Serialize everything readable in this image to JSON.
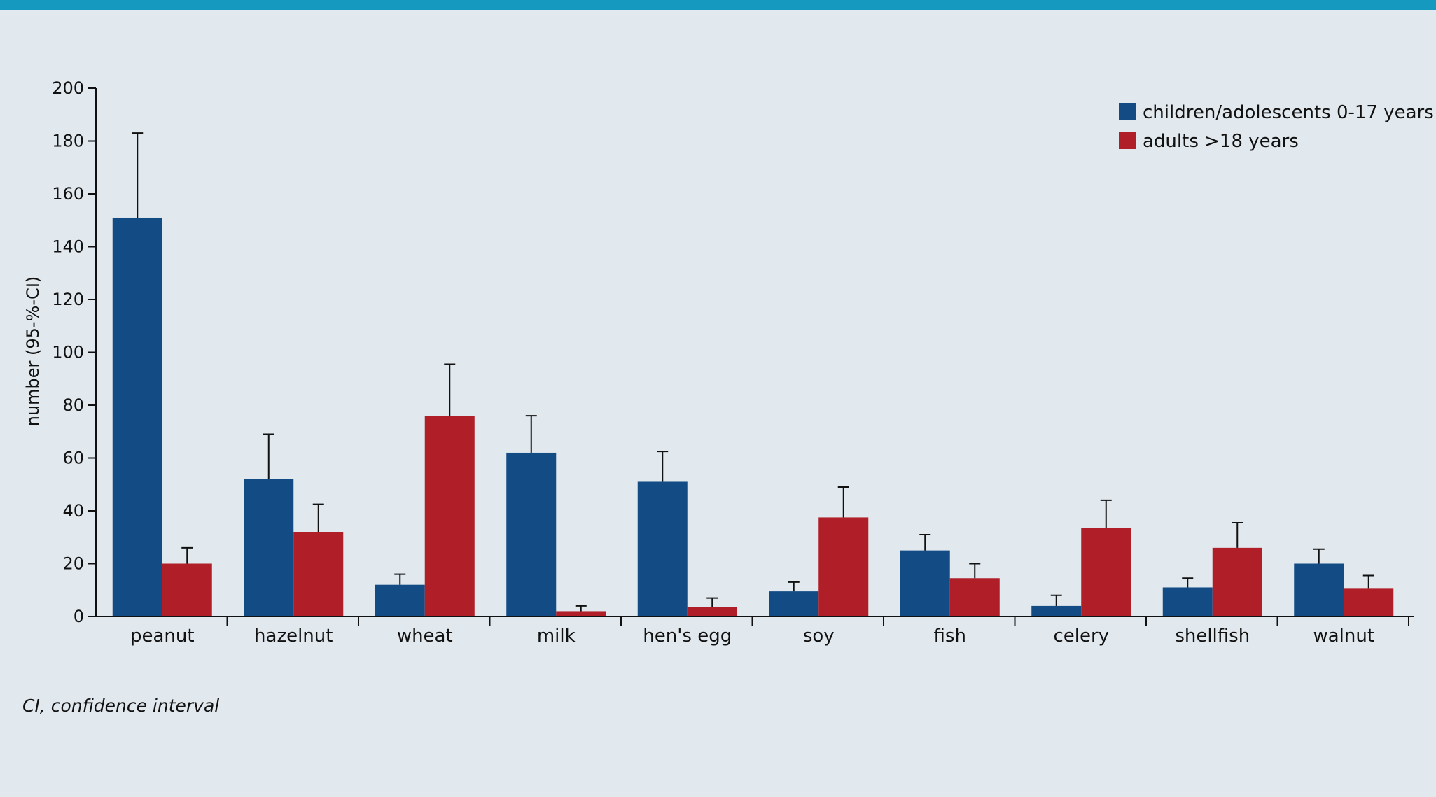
{
  "colors": {
    "top_bar": "#1599bf",
    "background": "#e1e8ee",
    "children": "#134b85",
    "adults": "#b01e28",
    "axis": "#111111"
  },
  "footnote": "CI, confidence interval",
  "chart_data": {
    "type": "bar",
    "title": "",
    "xlabel": "",
    "ylabel": "number (95-%-CI)",
    "ylim": [
      0,
      200
    ],
    "yticks": [
      0,
      20,
      40,
      60,
      80,
      100,
      120,
      140,
      160,
      180,
      200
    ],
    "categories": [
      "peanut",
      "hazelnut",
      "wheat",
      "milk",
      "hen's egg",
      "soy",
      "fish",
      "celery",
      "shellfish",
      "walnut"
    ],
    "legend_position": "top-right",
    "grid": false,
    "series": [
      {
        "name": "children/adolescents 0-17 years",
        "color": "#134b85",
        "values": [
          151,
          52,
          12,
          62,
          51,
          9.5,
          25,
          4,
          11,
          20
        ],
        "ci_upper": [
          183,
          69,
          16,
          76,
          62.5,
          13,
          31,
          8,
          14.5,
          25.5
        ]
      },
      {
        "name": "adults >18 years",
        "color": "#b01e28",
        "values": [
          20,
          32,
          76,
          2,
          3.5,
          37.5,
          14.5,
          33.5,
          26,
          10.5
        ],
        "ci_upper": [
          26,
          42.5,
          95.5,
          4,
          7,
          49,
          20,
          44,
          35.5,
          15.5
        ]
      }
    ]
  }
}
